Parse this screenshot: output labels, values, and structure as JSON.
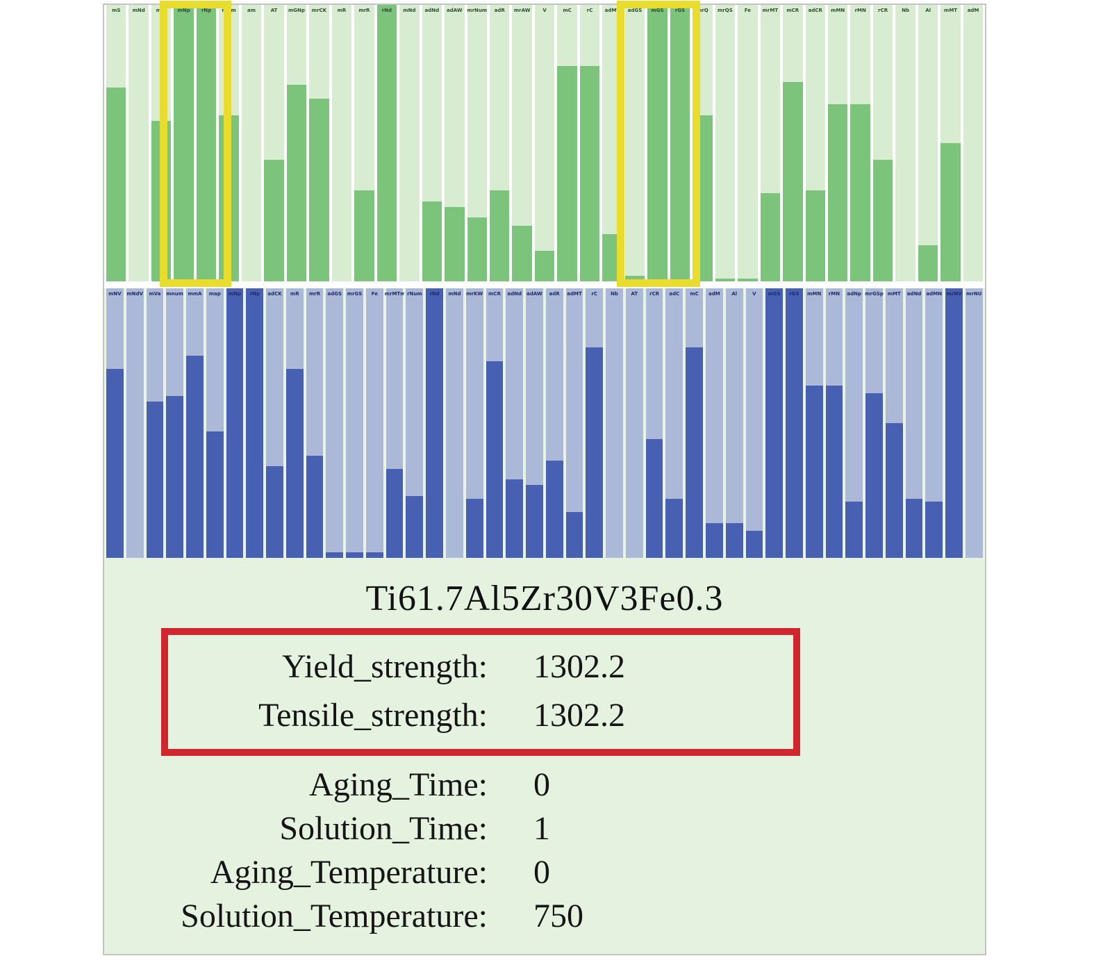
{
  "figure": {
    "border_color": "#c4c4c4",
    "background": "#ffffff"
  },
  "chart_data": [
    {
      "type": "bar",
      "id": "green-feature-chart",
      "title": "",
      "xlabel": "",
      "ylabel": "",
      "ylim": [
        0,
        1
      ],
      "grid": false,
      "legend": "none",
      "labels": [
        "mS",
        "mNd",
        "mW",
        "mNp",
        "rNp",
        "mNm",
        "am",
        "AT",
        "mGNp",
        "mrCK",
        "mR",
        "mrR",
        "rNd",
        "mNd",
        "adNd",
        "adAW",
        "mrNum",
        "adR",
        "mrAW",
        "V",
        "mC",
        "rC",
        "adMT",
        "adGS",
        "mGS",
        "rGS",
        "mrQ",
        "mrQS",
        "Fe",
        "mrMT",
        "mCR",
        "adCR",
        "mMN",
        "rMN",
        "rCR",
        "Nb",
        "Al",
        "mMT",
        "adM"
      ],
      "values": [
        0.7,
        0,
        0.58,
        1,
        1,
        0.6,
        0,
        0.44,
        0.71,
        0.66,
        0,
        0.33,
        1,
        0,
        0.29,
        0.27,
        0.23,
        0.33,
        0.2,
        0.11,
        0.78,
        0.78,
        0.17,
        0.02,
        1,
        1,
        0.6,
        0.01,
        0.01,
        0.32,
        0.72,
        0.33,
        0.64,
        0.64,
        0.44,
        0,
        0.13,
        0.5,
        0
      ],
      "column_bg": "#d7ecd0",
      "bar_color": "#7cc47c",
      "label_color": "#2e4d33",
      "gap_color": "#ffffff",
      "highlight_color": "#e8dd2e",
      "highlight_boxes": [
        {
          "name": "selected-feature-box-1",
          "left_pct": 6.31,
          "width_pct": 8.12
        },
        {
          "name": "selected-feature-box-2",
          "left_pct": 58.2,
          "width_pct": 9.46
        }
      ]
    },
    {
      "type": "bar",
      "id": "blue-feature-chart",
      "title": "",
      "xlabel": "",
      "ylabel": "",
      "ylim": [
        0,
        1
      ],
      "grid": false,
      "legend": "none",
      "labels": [
        "mNV",
        "mNdV",
        "mVa",
        "mnum",
        "mmA",
        "map",
        "mNp",
        "rNp",
        "adCK",
        "mR",
        "mrR",
        "adGS",
        "mrGS",
        "Fe",
        "mrMTm",
        "rNum",
        "rNd",
        "mNd",
        "mrKW",
        "mCR",
        "adNd",
        "adAW",
        "adR",
        "adMT",
        "rC",
        "Nb",
        "AT",
        "rCR",
        "adC",
        "mC",
        "adM",
        "Al",
        "V",
        "mGS",
        "rGS",
        "mMN",
        "rMN",
        "adNp",
        "mrGSp",
        "mMT",
        "adNd",
        "adMN",
        "mrNV",
        "mrNU"
      ],
      "values": [
        0.7,
        0,
        0.58,
        0.6,
        0.75,
        0.47,
        1,
        1,
        0.34,
        0.7,
        0.38,
        0.02,
        0.02,
        0.02,
        0.33,
        0.23,
        1,
        0,
        0.22,
        0.73,
        0.29,
        0.27,
        0.36,
        0.17,
        0.78,
        0,
        0,
        0.44,
        0.22,
        0.78,
        0.13,
        0.13,
        0.1,
        1,
        1,
        0.64,
        0.64,
        0.21,
        0.61,
        0.5,
        0.22,
        0.21,
        1,
        0
      ],
      "column_bg": "#abb8d8",
      "bar_color": "#4860b2",
      "label_color": "#1e2c6b",
      "gap_color": "#e9f3e4",
      "highlight_color": "#e8dd2e",
      "highlight_boxes": []
    }
  ],
  "panel": {
    "background": "#e6f2e0",
    "title": "Ti61.7Al5Zr30V3Fe0.3",
    "highlight_box_color": "#d0272e",
    "rows": [
      {
        "label": "Yield_strength:",
        "value": "1302.2"
      },
      {
        "label": "Tensile_strength:",
        "value": "1302.2"
      },
      {
        "label": "Aging_Time:",
        "value": "0"
      },
      {
        "label": "Solution_Time:",
        "value": "1"
      },
      {
        "label": "Aging_Temperature:",
        "value": "0"
      },
      {
        "label": "Solution_Temperature:",
        "value": "750"
      }
    ]
  }
}
